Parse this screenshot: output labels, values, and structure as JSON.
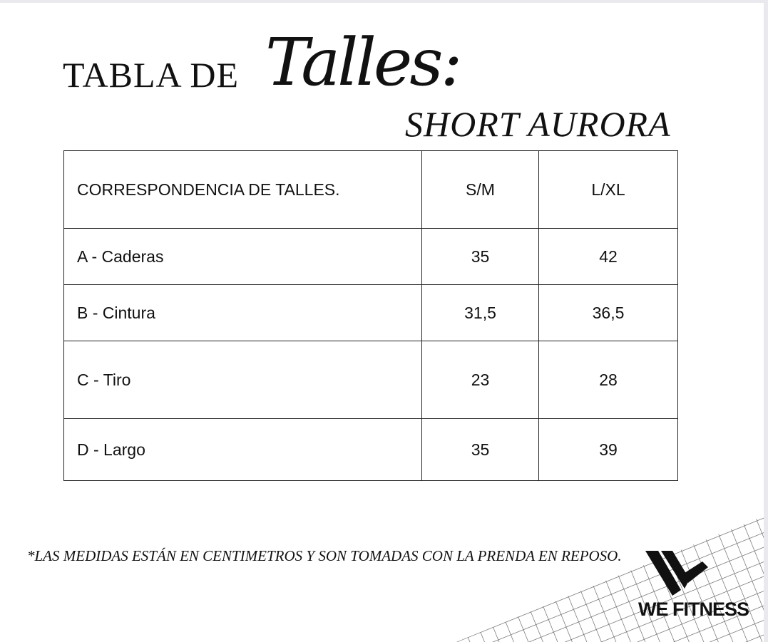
{
  "title": {
    "prefix": "TABLA DE",
    "script": "Talles:",
    "product": "SHORT AURORA"
  },
  "table": {
    "header": [
      "CORRESPONDENCIA DE TALLES.",
      "S/M",
      "L/XL"
    ],
    "rows": [
      [
        "A - Caderas",
        "35",
        "42"
      ],
      [
        "B - Cintura",
        "31,5",
        "36,5"
      ],
      [
        "C - Tiro",
        "23",
        "28"
      ],
      [
        "D - Largo",
        "35",
        "39"
      ]
    ]
  },
  "footnote": "*LAS MEDIDAS ESTÁN EN CENTIMETROS Y SON TOMADAS CON LA PRENDA EN REPOSO.",
  "brand": {
    "name": "WE FITNESS",
    "icon": "we-logo-icon"
  }
}
